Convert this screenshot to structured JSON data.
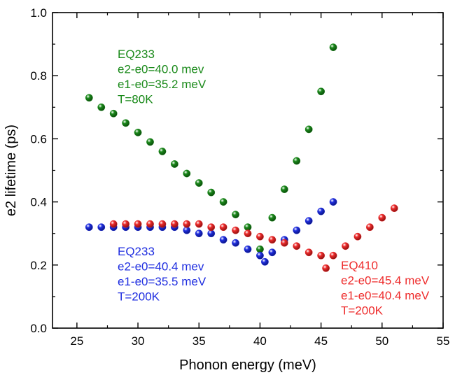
{
  "chart_data": {
    "type": "scatter",
    "xlabel": "Phonon energy (meV)",
    "ylabel": "e2 lifetime (ps)",
    "xlim": [
      23,
      55
    ],
    "ylim": [
      0,
      1.0
    ],
    "xticks": [
      25,
      30,
      35,
      40,
      45,
      50,
      55
    ],
    "yticks": [
      0.0,
      0.2,
      0.4,
      0.6,
      0.8,
      1.0
    ],
    "xtick_labels": [
      "25",
      "30",
      "35",
      "40",
      "45",
      "50",
      "55"
    ],
    "ytick_labels": [
      "0.0",
      "0.2",
      "0.4",
      "0.6",
      "0.8",
      "1.0"
    ],
    "grid": false,
    "series": [
      {
        "color": "#1a8a1a",
        "points": [
          [
            26,
            0.73
          ],
          [
            27,
            0.7
          ],
          [
            28,
            0.68
          ],
          [
            29,
            0.65
          ],
          [
            30,
            0.62
          ],
          [
            31,
            0.59
          ],
          [
            32,
            0.56
          ],
          [
            33,
            0.52
          ],
          [
            34,
            0.49
          ],
          [
            35,
            0.46
          ],
          [
            36,
            0.43
          ],
          [
            37,
            0.4
          ],
          [
            38,
            0.36
          ],
          [
            39,
            0.32
          ],
          [
            40,
            0.25
          ],
          [
            41,
            0.35
          ],
          [
            42,
            0.44
          ],
          [
            43,
            0.53
          ],
          [
            44,
            0.63
          ],
          [
            45,
            0.75
          ],
          [
            46,
            0.89
          ]
        ]
      },
      {
        "color": "#1f2ee0",
        "points": [
          [
            26,
            0.32
          ],
          [
            27,
            0.32
          ],
          [
            28,
            0.32
          ],
          [
            29,
            0.32
          ],
          [
            30,
            0.32
          ],
          [
            31,
            0.32
          ],
          [
            32,
            0.32
          ],
          [
            33,
            0.32
          ],
          [
            34,
            0.31
          ],
          [
            35,
            0.3
          ],
          [
            36,
            0.3
          ],
          [
            37,
            0.28
          ],
          [
            38,
            0.27
          ],
          [
            39,
            0.25
          ],
          [
            40,
            0.23
          ],
          [
            40.4,
            0.21
          ],
          [
            41,
            0.24
          ],
          [
            42,
            0.28
          ],
          [
            43,
            0.31
          ],
          [
            44,
            0.34
          ],
          [
            45,
            0.37
          ],
          [
            46,
            0.4
          ]
        ]
      },
      {
        "color": "#ee2b2b",
        "points": [
          [
            28,
            0.33
          ],
          [
            29,
            0.33
          ],
          [
            30,
            0.33
          ],
          [
            31,
            0.33
          ],
          [
            32,
            0.33
          ],
          [
            33,
            0.33
          ],
          [
            34,
            0.33
          ],
          [
            35,
            0.33
          ],
          [
            36,
            0.32
          ],
          [
            37,
            0.32
          ],
          [
            38,
            0.31
          ],
          [
            39,
            0.3
          ],
          [
            40,
            0.29
          ],
          [
            41,
            0.28
          ],
          [
            42,
            0.27
          ],
          [
            43,
            0.26
          ],
          [
            44,
            0.24
          ],
          [
            45,
            0.23
          ],
          [
            45.4,
            0.19
          ],
          [
            46,
            0.23
          ],
          [
            47,
            0.26
          ],
          [
            48,
            0.29
          ],
          [
            49,
            0.32
          ],
          [
            50,
            0.35
          ],
          [
            51,
            0.38
          ]
        ]
      }
    ],
    "annotations": [
      {
        "color": "#1a8a1a",
        "lines": [
          "EQ233",
          "e2-e0=40.0 mev",
          "e1-e0=35.2 meV",
          "T=80K"
        ]
      },
      {
        "color": "#1f2ee0",
        "lines": [
          "EQ233",
          "e2-e0=40.4 mev",
          "e1-e0=35.5 meV",
          "T=200K"
        ]
      },
      {
        "color": "#ee2b2b",
        "lines": [
          "EQ410",
          "e2-e0=45.4 meV",
          "e1-e0=40.4 meV",
          "T=200K"
        ]
      }
    ]
  }
}
